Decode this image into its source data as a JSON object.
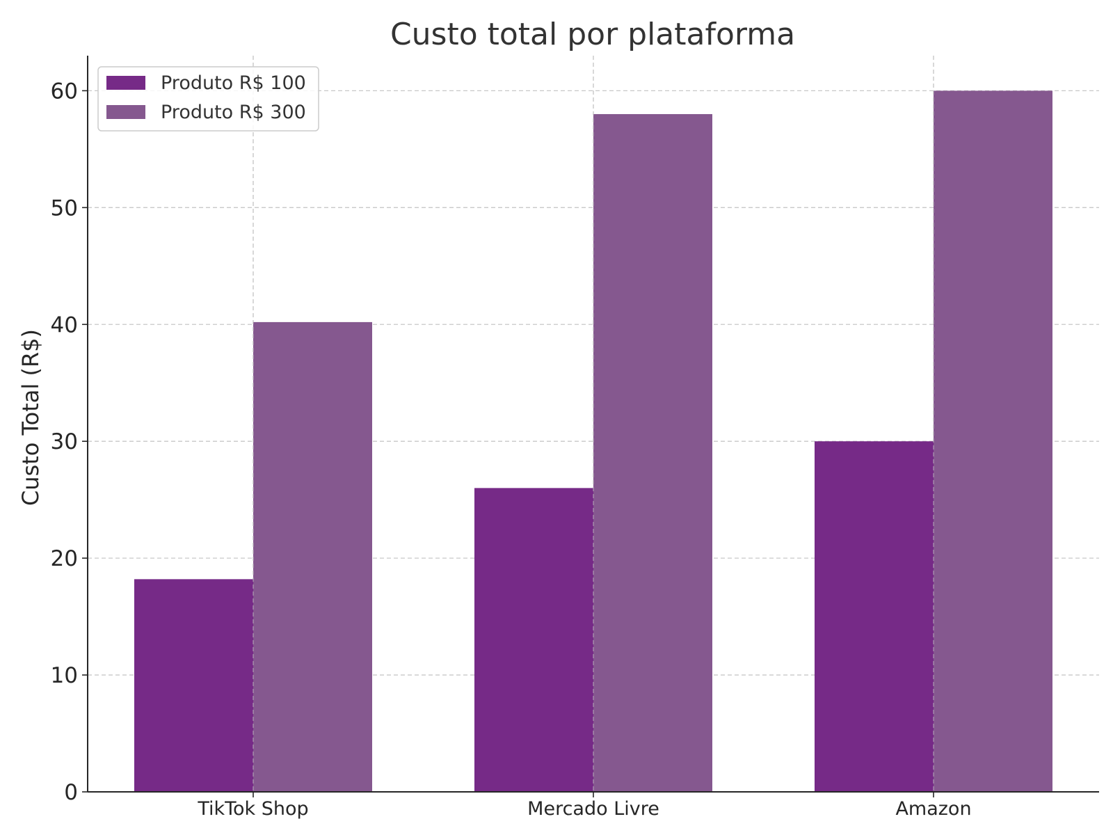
{
  "chart_data": {
    "type": "bar",
    "title": "Custo total por plataforma",
    "xlabel": "",
    "ylabel": "Custo Total (R$)",
    "categories": [
      "TikTok Shop",
      "Mercado Livre",
      "Amazon"
    ],
    "series": [
      {
        "name": "Produto R$ 100",
        "values": [
          18.2,
          26.0,
          30.0
        ],
        "color": "#762a87"
      },
      {
        "name": "Produto R$ 300",
        "values": [
          40.2,
          58.0,
          60.0
        ],
        "color": "#85588f"
      }
    ],
    "ylim": [
      0,
      63
    ],
    "yticks": [
      "0",
      "10",
      "20",
      "30",
      "40",
      "50",
      "60"
    ],
    "grid": true,
    "legend_position": "top-left"
  }
}
